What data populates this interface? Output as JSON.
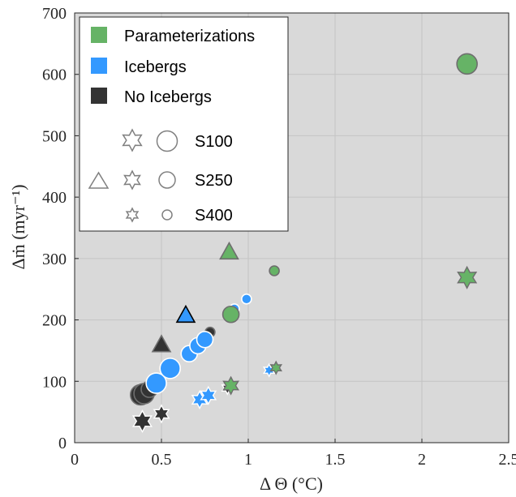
{
  "chart_data": {
    "type": "scatter",
    "xlabel": "Δ Θ (°C)",
    "ylabel": "Δṁ (myr⁻¹)",
    "xlim": [
      0,
      2.5
    ],
    "ylim": [
      0,
      700
    ],
    "x_ticks": [
      "0",
      "0.5",
      "1",
      "1.5",
      "2",
      "2.5"
    ],
    "y_ticks": [
      "0",
      "100",
      "200",
      "300",
      "400",
      "500",
      "600",
      "700"
    ],
    "grid": true,
    "legend_position": "top-left",
    "legend": {
      "groups": [
        {
          "name": "Parameterizations",
          "color": "#66B366"
        },
        {
          "name": "Icebergs",
          "color": "#3399FF"
        },
        {
          "name": "No Icebergs",
          "color": "#333333"
        }
      ],
      "sizes": [
        "S100",
        "S250",
        "S400"
      ]
    },
    "colors": {
      "parameterizations": "#66B366",
      "icebergs": "#3399FF",
      "no_icebergs": "#333333",
      "background": "#D9D9D9"
    },
    "series": [
      {
        "group": "no_icebergs",
        "marker": "circle",
        "size": "S100",
        "x": 0.38,
        "y": 78
      },
      {
        "group": "no_icebergs",
        "marker": "circle",
        "size": "S100",
        "x": 0.4,
        "y": 80
      },
      {
        "group": "no_icebergs",
        "marker": "circle",
        "size": "S250",
        "x": 0.43,
        "y": 87
      },
      {
        "group": "no_icebergs",
        "marker": "circle",
        "size": "S400",
        "x": 0.78,
        "y": 180
      },
      {
        "group": "icebergs",
        "marker": "circle",
        "size": "S100",
        "x": 0.47,
        "y": 97
      },
      {
        "group": "icebergs",
        "marker": "circle",
        "size": "S100",
        "x": 0.55,
        "y": 121
      },
      {
        "group": "icebergs",
        "marker": "circle",
        "size": "S250",
        "x": 0.66,
        "y": 145
      },
      {
        "group": "icebergs",
        "marker": "circle",
        "size": "S250",
        "x": 0.71,
        "y": 158
      },
      {
        "group": "icebergs",
        "marker": "circle",
        "size": "S250",
        "x": 0.75,
        "y": 168
      },
      {
        "group": "icebergs",
        "marker": "circle",
        "size": "S400",
        "x": 0.92,
        "y": 218
      },
      {
        "group": "icebergs",
        "marker": "circle",
        "size": "S400",
        "x": 0.99,
        "y": 234
      },
      {
        "group": "parameterizations",
        "marker": "circle",
        "size": "S250",
        "x": 0.9,
        "y": 209
      },
      {
        "group": "parameterizations",
        "marker": "circle",
        "size": "S400",
        "x": 1.15,
        "y": 280
      },
      {
        "group": "parameterizations",
        "marker": "circle",
        "size": "S100",
        "x": 2.26,
        "y": 617
      },
      {
        "group": "no_icebergs",
        "marker": "triangle",
        "size": "S250",
        "x": 0.5,
        "y": 160
      },
      {
        "group": "icebergs",
        "marker": "triangle",
        "size": "S250",
        "x": 0.64,
        "y": 208
      },
      {
        "group": "parameterizations",
        "marker": "triangle",
        "size": "S250",
        "x": 0.89,
        "y": 311
      },
      {
        "group": "no_icebergs",
        "marker": "star",
        "size": "S100",
        "x": 0.39,
        "y": 35
      },
      {
        "group": "no_icebergs",
        "marker": "star",
        "size": "S250",
        "x": 0.5,
        "y": 47
      },
      {
        "group": "icebergs",
        "marker": "star",
        "size": "S250",
        "x": 0.72,
        "y": 70
      },
      {
        "group": "icebergs",
        "marker": "star",
        "size": "S250",
        "x": 0.77,
        "y": 77
      },
      {
        "group": "no_icebergs",
        "marker": "star",
        "size": "S400",
        "x": 0.88,
        "y": 89
      },
      {
        "group": "parameterizations",
        "marker": "star",
        "size": "S250",
        "x": 0.9,
        "y": 93
      },
      {
        "group": "icebergs",
        "marker": "star",
        "size": "S400",
        "x": 1.12,
        "y": 118
      },
      {
        "group": "parameterizations",
        "marker": "star",
        "size": "S400",
        "x": 1.16,
        "y": 122
      },
      {
        "group": "parameterizations",
        "marker": "star",
        "size": "S100",
        "x": 2.26,
        "y": 269
      }
    ]
  }
}
